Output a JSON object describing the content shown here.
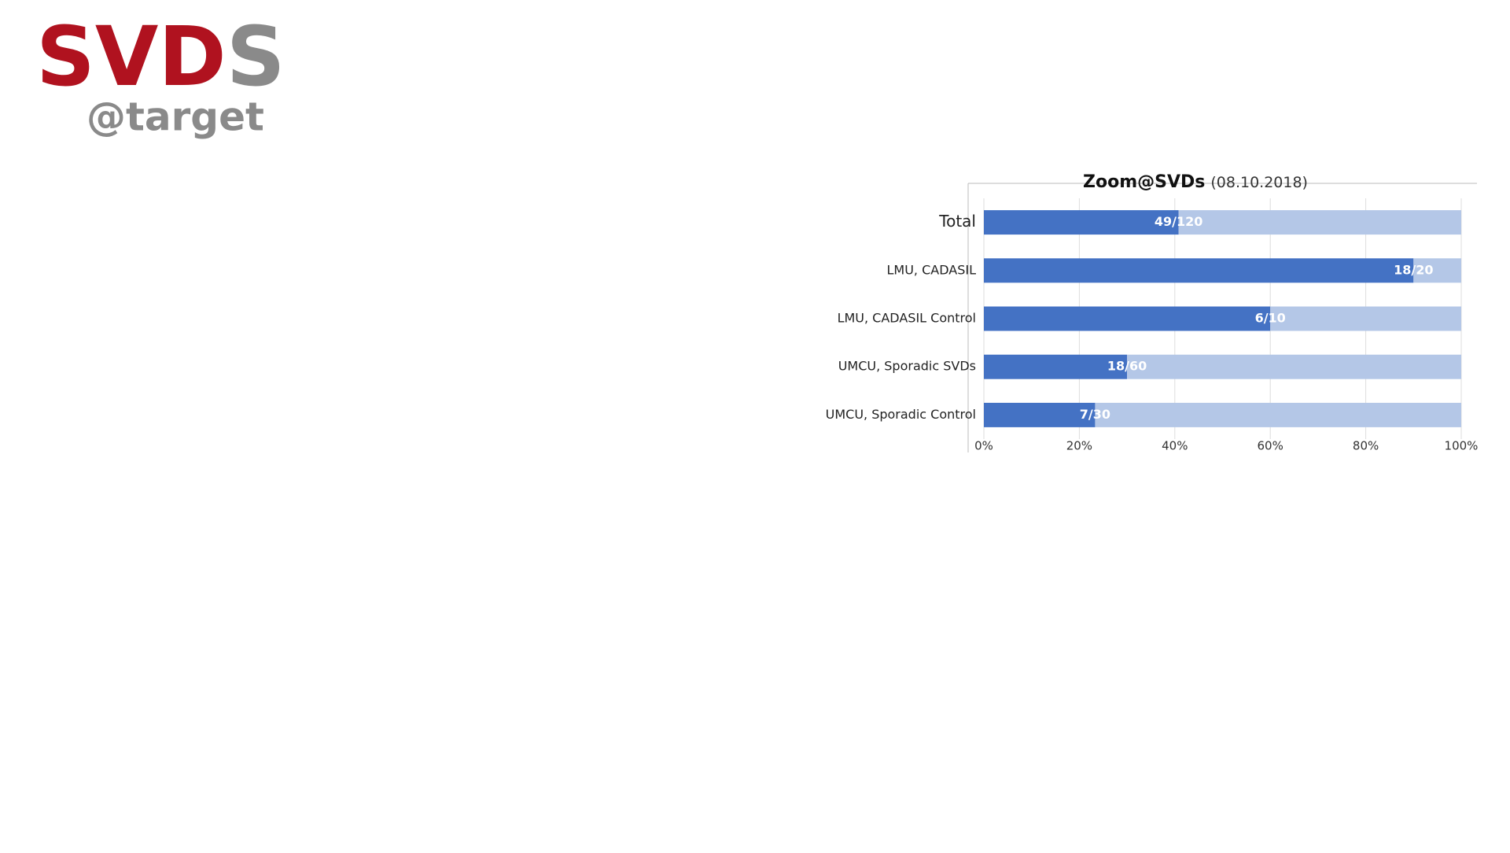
{
  "logo": {
    "red": "SVD",
    "gray": "S",
    "sub": "@target"
  },
  "chart_data": {
    "type": "stacked-bar-horizontal",
    "title": "Zoom@SVDs",
    "subtitle": "(08.10.2018)",
    "categories": [
      "Total",
      "LMU, CADASIL",
      "LMU, CADASIL Control",
      "UMCU, Sporadic SVDs",
      "UMCU, Sporadic Control"
    ],
    "series": [
      {
        "color": "#4472c4",
        "values": [
          40.8,
          90,
          60,
          30,
          23.3
        ]
      },
      {
        "color": "#b4c7e7",
        "values": [
          59.2,
          10,
          40,
          70,
          76.7
        ]
      }
    ],
    "annotations": [
      "49/120",
      "18/20",
      "6/10",
      "18/60",
      "7/30"
    ],
    "xlim": [
      0,
      100
    ],
    "xticks": [
      {
        "value": 0,
        "label": "0%"
      },
      {
        "value": 20,
        "label": "20%"
      },
      {
        "value": 40,
        "label": "40%"
      },
      {
        "value": 60,
        "label": "60%"
      },
      {
        "value": 80,
        "label": "80%"
      },
      {
        "value": 100,
        "label": "100%"
      }
    ],
    "grid": true
  }
}
